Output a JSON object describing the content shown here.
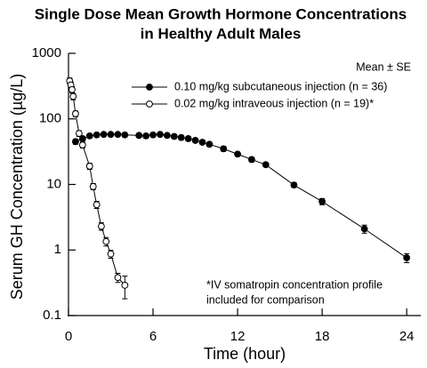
{
  "chart_data": {
    "type": "line",
    "title": [
      "Single Dose Mean Growth Hormone Concentrations",
      "in Healthy Adult Males"
    ],
    "x_label": "Time (hour)",
    "y_label": "Serum GH Concentration (µg/L)",
    "legend_title": "Mean ± SE",
    "legend_position": "upper right",
    "annotation": [
      "*IV somatropin concentration profile",
      "included for comparison"
    ],
    "y_scale": "log",
    "xlim": [
      0,
      25
    ],
    "xticks": [
      0,
      6,
      12,
      18,
      24
    ],
    "ylim": [
      0.1,
      1000
    ],
    "yticks": [
      0.1,
      1,
      10,
      100,
      1000
    ],
    "series": [
      {
        "name": "0.10 mg/kg subcutaneous injection (n = 36)",
        "color": "#000000",
        "marker_fill": "#000000",
        "x": [
          0.5,
          1,
          1.5,
          2,
          2.5,
          3,
          3.5,
          4,
          5,
          5.5,
          6,
          6.5,
          7,
          7.5,
          8,
          8.5,
          9,
          9.5,
          10,
          11,
          12,
          13,
          14,
          16,
          18,
          21,
          24
        ],
        "values": [
          45,
          50,
          55,
          57,
          58,
          58,
          58,
          57,
          56,
          55,
          57,
          58,
          56,
          54,
          52,
          50,
          47,
          44,
          41,
          35,
          29,
          24,
          20,
          9.8,
          5.5,
          2.1,
          0.76
        ],
        "errors": [
          4,
          4,
          4,
          4,
          4,
          4,
          4,
          4,
          4,
          4,
          4,
          4,
          4,
          4,
          4,
          4,
          3,
          3,
          3,
          3,
          2,
          2,
          1.5,
          0.8,
          0.6,
          0.3,
          0.12
        ]
      },
      {
        "name": "0.02 mg/kg intraveous injection (n = 19)*",
        "color": "#000000",
        "marker_fill": "#ffffff",
        "x": [
          0.083,
          0.167,
          0.25,
          0.333,
          0.5,
          0.75,
          1,
          1.5,
          1.75,
          2,
          2.33,
          2.67,
          3,
          3.5,
          4
        ],
        "values": [
          380,
          330,
          280,
          220,
          120,
          60,
          40,
          19,
          9.3,
          4.9,
          2.3,
          1.35,
          0.87,
          0.38,
          0.29
        ],
        "errors": [
          40,
          35,
          30,
          25,
          12,
          6,
          4,
          2,
          1,
          0.6,
          0.3,
          0.2,
          0.12,
          0.06,
          0.11
        ]
      }
    ]
  }
}
